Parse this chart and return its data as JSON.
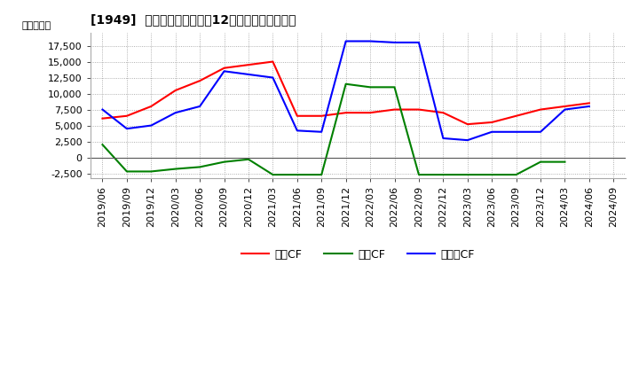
{
  "title": "[1949]  キャッシュフローの12か月移動合計の推移",
  "ylabel": "（百万円）",
  "background_color": "#ffffff",
  "plot_bg_color": "#ffffff",
  "x_labels": [
    "2019/06",
    "2019/09",
    "2019/12",
    "2020/03",
    "2020/06",
    "2020/09",
    "2020/12",
    "2021/03",
    "2021/06",
    "2021/09",
    "2021/12",
    "2022/03",
    "2022/06",
    "2022/09",
    "2022/12",
    "2023/03",
    "2023/06",
    "2023/09",
    "2023/12",
    "2024/03",
    "2024/06",
    "2024/09"
  ],
  "operating_cf": [
    6100,
    6500,
    8000,
    10500,
    12000,
    14000,
    14500,
    15000,
    6500,
    6500,
    7000,
    7000,
    7500,
    7500,
    7000,
    5200,
    5500,
    6500,
    7500,
    8000,
    8500,
    null
  ],
  "investing_cf": [
    2000,
    -2200,
    -2200,
    -1800,
    -1500,
    -700,
    -300,
    -2700,
    -2700,
    -2700,
    11500,
    11000,
    11000,
    -2700,
    -2700,
    -2700,
    -2700,
    -2700,
    -700,
    -700,
    null,
    null
  ],
  "free_cf": [
    7500,
    4500,
    5000,
    7000,
    8000,
    13500,
    13000,
    12500,
    4200,
    4000,
    18200,
    18200,
    18000,
    18000,
    3000,
    2700,
    4000,
    4000,
    4000,
    7500,
    8000,
    null
  ],
  "operating_color": "#ff0000",
  "investing_color": "#008000",
  "free_color": "#0000ff",
  "ylim": [
    -3200,
    19500
  ],
  "yticks": [
    -2500,
    0,
    2500,
    5000,
    7500,
    10000,
    12500,
    15000,
    17500
  ],
  "legend_labels": [
    "営業CF",
    "投資CF",
    "フリーCF"
  ]
}
